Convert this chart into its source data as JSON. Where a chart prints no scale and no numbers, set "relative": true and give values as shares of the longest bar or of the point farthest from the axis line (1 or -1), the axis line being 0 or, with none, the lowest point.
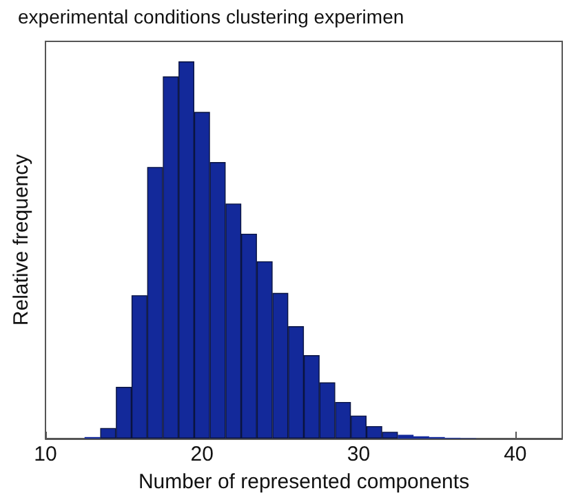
{
  "chart_data": {
    "type": "bar",
    "title": "experimental conditions clustering experimen",
    "xlabel": "Number of represented components",
    "ylabel": "Relative frequency",
    "relative": true,
    "color": "#13299a",
    "x": [
      13,
      14,
      15,
      16,
      17,
      18,
      19,
      20,
      21,
      22,
      23,
      24,
      25,
      26,
      27,
      28,
      29,
      30,
      31,
      32,
      33,
      34,
      35,
      36,
      37
    ],
    "values": [
      0.004,
      0.028,
      0.137,
      0.38,
      0.72,
      0.96,
      1,
      0.866,
      0.733,
      0.623,
      0.543,
      0.47,
      0.386,
      0.298,
      0.221,
      0.149,
      0.097,
      0.061,
      0.033,
      0.018,
      0.01,
      0.006,
      0.004,
      0.002,
      0.001
    ],
    "xlim": [
      10,
      43
    ],
    "xticks": [
      10,
      20,
      30,
      40
    ],
    "grid": false
  }
}
